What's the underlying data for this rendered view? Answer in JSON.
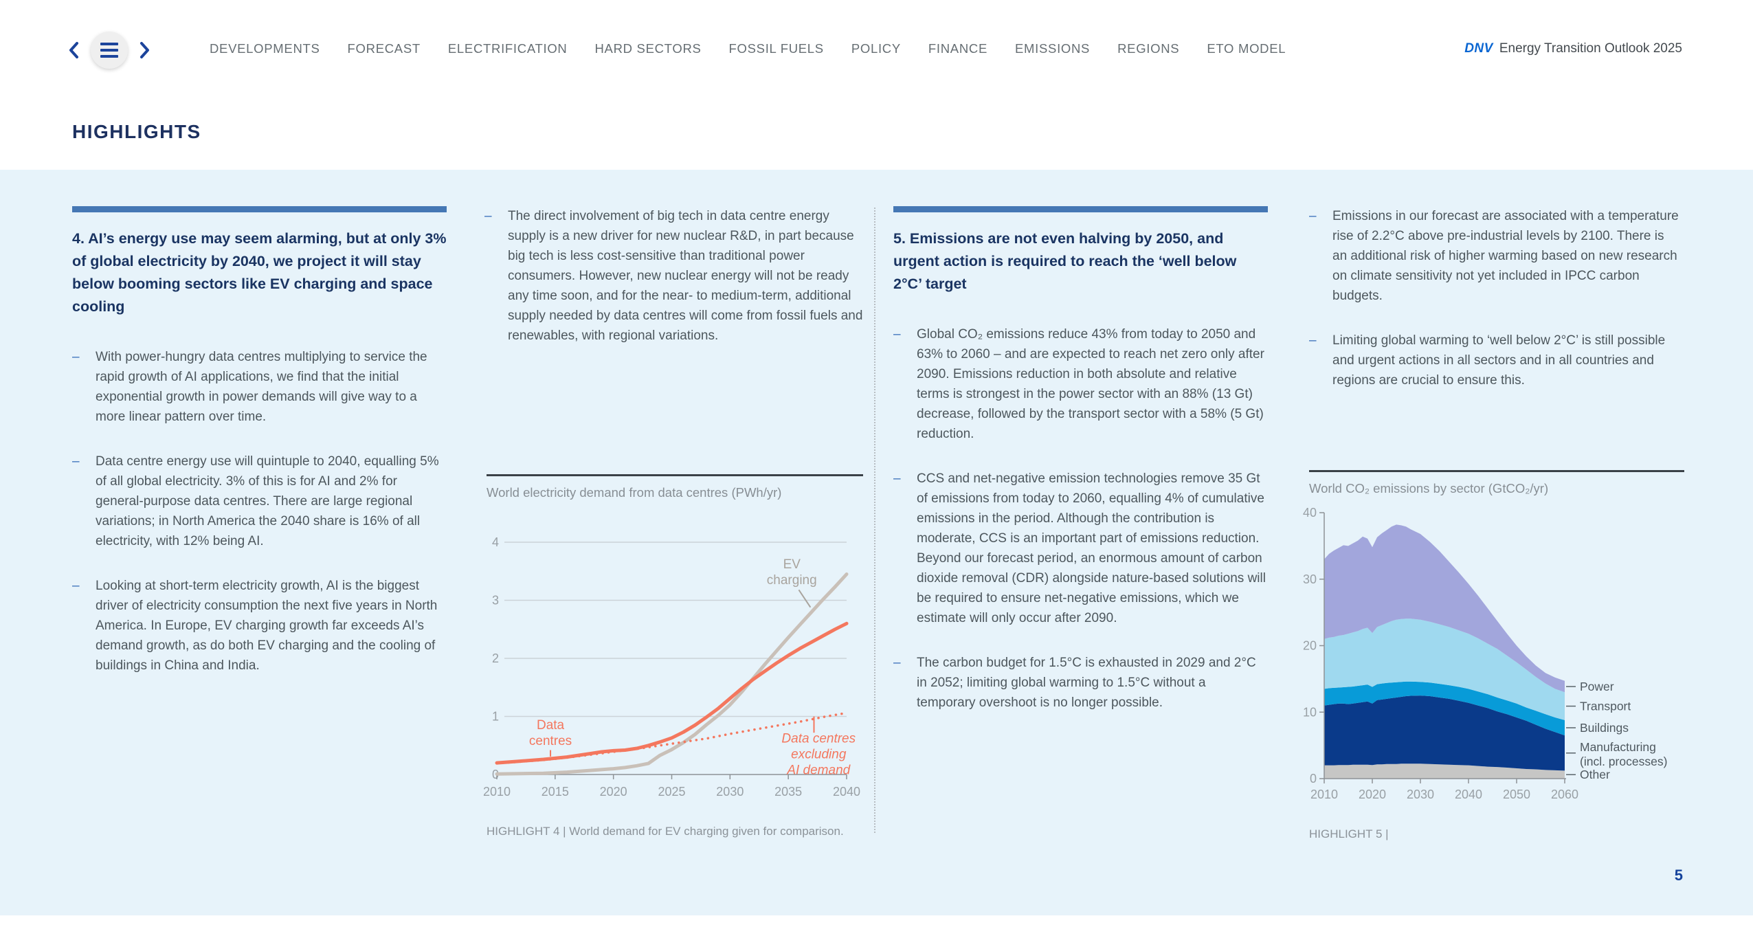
{
  "page": {
    "number": "5"
  },
  "header": {
    "page_title": "HIGHLIGHTS",
    "nav": [
      "DEVELOPMENTS",
      "FORECAST",
      "ELECTRIFICATION",
      "HARD SECTORS",
      "FOSSIL FUELS",
      "POLICY",
      "FINANCE",
      "EMISSIONS",
      "REGIONS",
      "ETO MODEL"
    ],
    "brand": {
      "dnv": "DNV",
      "title": "Energy Transition Outlook 2025"
    }
  },
  "columns": [
    {
      "heading": "4. AI’s energy use may seem alarming, but at only 3% of global electricity by 2040, we project it will stay below booming sectors like EV charging and space cooling",
      "bullets": [
        "With power-hungry data centres multiplying to service the rapid growth of AI applications, we find that the initial exponential growth in power demands will give way to a more linear pattern over time.",
        "Data centre energy use will quintuple to 2040, equalling 5% of all global electricity. 3% of this is for AI and 2% for general-purpose data centres. There are large regional variations; in North America the 2040 share is 16% of all electricity, with 12% being AI.",
        "Looking at short-term electricity growth, AI is the biggest driver of electricity consumption the next five years in North America. In Europe, EV charging growth far exceeds AI’s demand growth, as do both EV charging and the cooling of buildings in China and India."
      ]
    },
    {
      "bullets": [
        "The direct involvement of big tech in data centre energy supply is a new driver for new nuclear R&D, in part because big tech is less cost-sensitive than traditional power consumers. However, new nuclear energy will not be ready any time soon, and for the near- to medium-term, additional supply needed by data centres will come from fossil fuels and renewables, with regional variations."
      ]
    },
    {
      "heading": "5. Emissions are not even halving by 2050, and urgent action is required to reach the ‘well below 2°C’ target",
      "bullets": [
        "Global CO₂ emissions reduce 43% from today to 2050 and 63% to 2060 – and are expected to reach net zero only after 2090. Emissions reduction in both absolute and relative terms is strongest in the power sector with an 88% (13 Gt) decrease, followed by the transport sector with a 58% (5 Gt) reduction.",
        "CCS and net-negative emission technologies remove 35 Gt of emissions from today to 2060, equalling 4% of cumulative emissions in the period. Although the contribution is moderate, CCS is an important part of emissions reduction. Beyond our forecast period, an enormous amount of carbon dioxide removal (CDR) alongside nature-based solutions will be required to ensure net-negative emissions, which we estimate will only occur after 2090.",
        "The carbon budget for 1.5°C is exhausted in 2029 and 2°C in 2052; limiting global warming to 1.5°C without a temporary overshoot is no longer possible."
      ]
    },
    {
      "bullets": [
        "Emissions in our forecast are associated with a temperature rise of 2.2°C above pre-industrial levels by 2100. There is an additional risk of higher warming based on new research on climate sensitivity not yet included in IPCC carbon budgets.",
        "Limiting global warming to ‘well below 2°C’ is still possible and urgent actions in all sectors and in all countries and regions are crucial to ensure this."
      ]
    }
  ],
  "chart_data": [
    {
      "type": "line",
      "title": "World electricity demand from data centres (PWh/yr)",
      "caption": "HIGHLIGHT 4 | World demand for EV charging given for comparison.",
      "xlabel": "",
      "ylabel": "PWh/yr",
      "xlim": [
        2010,
        2040
      ],
      "ylim": [
        0,
        4
      ],
      "x_ticks": [
        2010,
        2015,
        2020,
        2025,
        2030,
        2035,
        2040
      ],
      "y_ticks": [
        0,
        1,
        2,
        3,
        4
      ],
      "grid": true,
      "colors": {
        "coral": "#f4775e",
        "gray_line": "#c9c0b8",
        "grid": "#ccd3d8",
        "axis": "#8d9296",
        "tick_label": "#99a0a5"
      },
      "series": [
        {
          "name": "EV charging",
          "color": "#c9c0b8",
          "style": "solid",
          "width": 5,
          "x": [
            2010,
            2014,
            2016,
            2018,
            2020,
            2021,
            2022,
            2023,
            2024,
            2025,
            2026,
            2027,
            2028,
            2029,
            2030,
            2031,
            2032,
            2033,
            2034,
            2035,
            2036,
            2037,
            2038,
            2039,
            2040
          ],
          "y": [
            0.01,
            0.02,
            0.04,
            0.07,
            0.1,
            0.12,
            0.15,
            0.19,
            0.33,
            0.43,
            0.55,
            0.69,
            0.86,
            1.02,
            1.2,
            1.42,
            1.66,
            1.9,
            2.13,
            2.36,
            2.58,
            2.8,
            3.02,
            3.23,
            3.45
          ]
        },
        {
          "name": "Data centres excluding AI demand",
          "color": "#f4775e",
          "style": "dotted",
          "width": 3.5,
          "x": [
            2010,
            2012,
            2014,
            2016,
            2018,
            2020,
            2022,
            2023,
            2024,
            2025,
            2026,
            2028,
            2030,
            2032,
            2034,
            2036,
            2038,
            2040
          ],
          "y": [
            0.19,
            0.22,
            0.25,
            0.29,
            0.34,
            0.39,
            0.44,
            0.47,
            0.5,
            0.53,
            0.56,
            0.62,
            0.7,
            0.77,
            0.84,
            0.91,
            0.99,
            1.06
          ]
        },
        {
          "name": "Data centres",
          "color": "#f4775e",
          "style": "solid",
          "width": 5,
          "x": [
            2010,
            2012,
            2014,
            2016,
            2018,
            2019,
            2020,
            2021,
            2022,
            2023,
            2024,
            2025,
            2026,
            2027,
            2028,
            2029,
            2030,
            2031,
            2032,
            2033,
            2034,
            2035,
            2036,
            2037,
            2038,
            2039,
            2040
          ],
          "y": [
            0.2,
            0.23,
            0.26,
            0.3,
            0.36,
            0.39,
            0.41,
            0.42,
            0.45,
            0.5,
            0.56,
            0.63,
            0.73,
            0.85,
            0.99,
            1.14,
            1.31,
            1.48,
            1.64,
            1.78,
            1.92,
            2.05,
            2.17,
            2.28,
            2.39,
            2.5,
            2.6
          ]
        }
      ],
      "annotations": [
        {
          "lines": [
            "EV",
            "charging"
          ],
          "color": "#a9a49e",
          "italic": false,
          "x": 2035.3,
          "y": 3.62,
          "pointer": {
            "x1": 2035.9,
            "y1": 3.18,
            "x2": 2036.9,
            "y2": 2.88
          }
        },
        {
          "lines": [
            "Data",
            "centres"
          ],
          "color": "#f4775e",
          "italic": false,
          "x": 2014.6,
          "y": 0.85,
          "pointer": {
            "x1": 2014.6,
            "y1": 0.42,
            "x2": 2014.6,
            "y2": 0.31
          }
        },
        {
          "lines": [
            "Data centres",
            "excluding",
            "AI demand"
          ],
          "color": "#f4775e",
          "italic": true,
          "x": 2037.6,
          "y": 0.62,
          "pointer": {
            "x1": 2037.2,
            "y1": 1.0,
            "x2": 2037.2,
            "y2": 0.72
          }
        }
      ]
    },
    {
      "type": "area",
      "title": "World CO₂ emissions by sector (GtCO₂/yr)",
      "caption": "HIGHLIGHT 5 |",
      "xlabel": "",
      "ylabel": "GtCO₂/yr",
      "xlim": [
        2010,
        2060
      ],
      "ylim": [
        0,
        40
      ],
      "x_ticks": [
        2010,
        2020,
        2030,
        2040,
        2050,
        2060
      ],
      "y_ticks": [
        0,
        10,
        20,
        30,
        40
      ],
      "grid": false,
      "legend_position": "right",
      "colors": {
        "axis": "#8d9296",
        "tick_label": "#99a0a5",
        "legend_text": "#4f5960"
      },
      "years": [
        2010,
        2011,
        2012,
        2013,
        2014,
        2015,
        2016,
        2017,
        2018,
        2019,
        2020,
        2021,
        2022,
        2023,
        2024,
        2025,
        2026,
        2027,
        2028,
        2030,
        2032,
        2034,
        2036,
        2038,
        2040,
        2042,
        2044,
        2046,
        2048,
        2050,
        2052,
        2054,
        2056,
        2058,
        2060
      ],
      "layers": [
        {
          "name": "Other",
          "label_lines": [
            "Other"
          ],
          "color": "#c6c6c5",
          "top": [
            2.0,
            2.0,
            2.0,
            2.05,
            2.05,
            2.05,
            2.1,
            2.1,
            2.1,
            2.1,
            2.05,
            2.15,
            2.15,
            2.2,
            2.2,
            2.2,
            2.25,
            2.25,
            2.25,
            2.25,
            2.2,
            2.15,
            2.1,
            2.05,
            2.0,
            1.9,
            1.8,
            1.75,
            1.65,
            1.55,
            1.45,
            1.4,
            1.3,
            1.25,
            1.2
          ]
        },
        {
          "name": "Manufacturing (incl. processes)",
          "label_lines": [
            "Manufacturing",
            "(incl. processes)"
          ],
          "color": "#0a3a8a",
          "top": [
            11.0,
            11.1,
            11.2,
            11.3,
            11.3,
            11.2,
            11.3,
            11.4,
            11.5,
            11.6,
            11.3,
            11.8,
            11.9,
            12.0,
            12.1,
            12.2,
            12.3,
            12.4,
            12.45,
            12.5,
            12.4,
            12.2,
            12.0,
            11.7,
            11.4,
            11.0,
            10.6,
            10.1,
            9.7,
            9.2,
            8.7,
            8.1,
            7.5,
            7.0,
            6.5
          ]
        },
        {
          "name": "Buildings",
          "label_lines": [
            "Buildings"
          ],
          "color": "#089bd8",
          "top": [
            13.5,
            13.6,
            13.65,
            13.7,
            13.75,
            13.8,
            13.85,
            13.95,
            14.05,
            14.15,
            13.8,
            14.2,
            14.3,
            14.4,
            14.45,
            14.5,
            14.55,
            14.6,
            14.6,
            14.55,
            14.45,
            14.25,
            14.05,
            13.8,
            13.5,
            13.1,
            12.7,
            12.2,
            11.75,
            11.3,
            10.7,
            10.2,
            9.7,
            9.2,
            8.8
          ]
        },
        {
          "name": "Transport",
          "label_lines": [
            "Transport"
          ],
          "color": "#9fd9ef",
          "top": [
            21.0,
            21.2,
            21.3,
            21.5,
            21.6,
            21.8,
            22.0,
            22.2,
            22.5,
            22.7,
            21.9,
            22.8,
            23.1,
            23.4,
            23.7,
            23.9,
            24.0,
            24.05,
            24.05,
            23.9,
            23.6,
            23.2,
            22.8,
            22.3,
            21.8,
            21.1,
            20.3,
            19.5,
            18.5,
            17.5,
            16.4,
            15.3,
            14.3,
            13.5,
            13.0
          ]
        },
        {
          "name": "Power",
          "label_lines": [
            "Power"
          ],
          "color": "#a2a6dc",
          "top": [
            33.0,
            33.8,
            34.3,
            34.7,
            35.1,
            35.0,
            35.4,
            35.8,
            36.4,
            36.1,
            34.8,
            36.3,
            36.9,
            37.4,
            37.9,
            38.2,
            38.1,
            37.9,
            37.5,
            36.8,
            35.6,
            34.2,
            32.6,
            31.0,
            29.3,
            27.5,
            25.6,
            23.7,
            21.8,
            20.0,
            18.4,
            17.0,
            15.9,
            15.2,
            14.7
          ]
        }
      ]
    }
  ]
}
